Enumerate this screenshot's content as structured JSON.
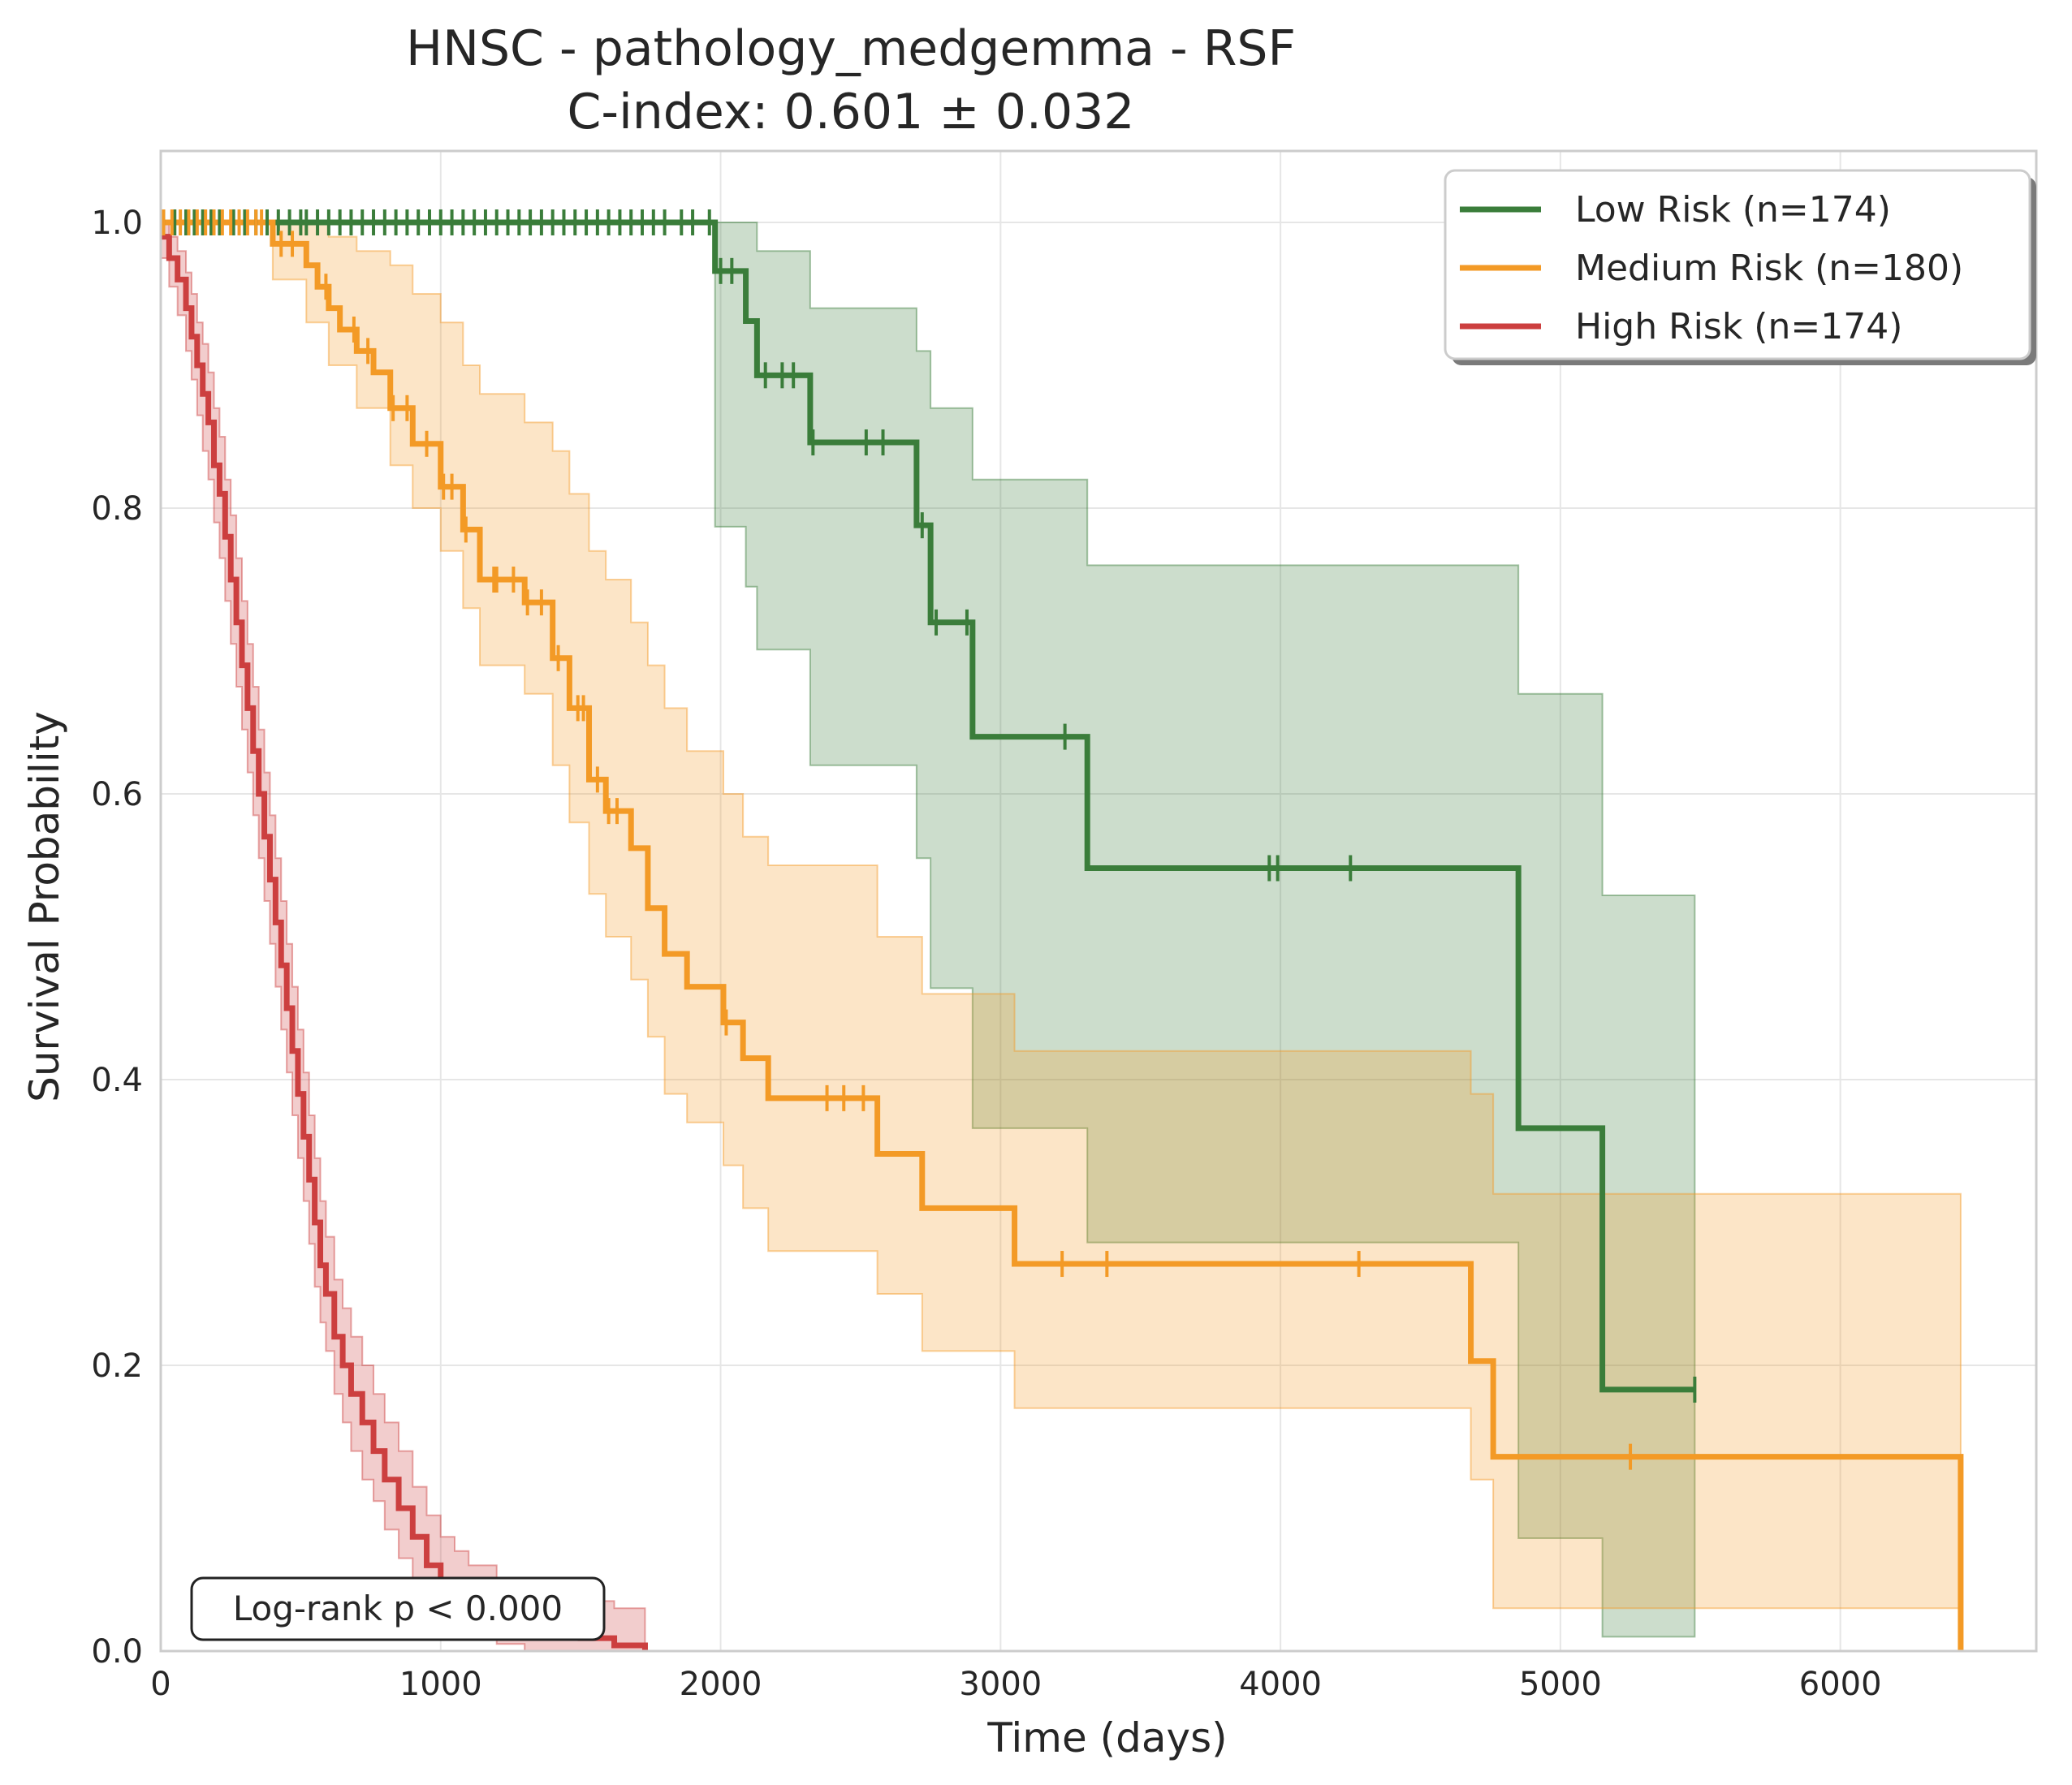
{
  "chart_data": {
    "type": "line",
    "title": "HNSC - pathology_medgemma - RSF",
    "subtitle": "C-index: 0.601 ± 0.032",
    "xlabel": "Time (days)",
    "ylabel": "Survival Probability",
    "xlim": [
      0,
      6700
    ],
    "ylim": [
      0,
      1.05
    ],
    "x_ticks": [
      0,
      1000,
      2000,
      3000,
      4000,
      5000,
      6000
    ],
    "y_ticks": [
      0.0,
      0.2,
      0.4,
      0.6,
      0.8,
      1.0
    ],
    "x_tick_labels": [
      "0",
      "1000",
      "2000",
      "3000",
      "4000",
      "5000",
      "6000"
    ],
    "y_tick_labels": [
      "0.0",
      "0.2",
      "0.4",
      "0.6",
      "0.8",
      "1.0"
    ],
    "grid": true,
    "legend_position": "top-right",
    "annotation": "Log-rank p < 0.000",
    "series": [
      {
        "name": "Low Risk (n=174)",
        "color": "#3a7d3a",
        "steps": [
          [
            0,
            1.0
          ],
          [
            1980,
            0.966
          ],
          [
            2090,
            0.931
          ],
          [
            2130,
            0.893
          ],
          [
            2320,
            0.846
          ],
          [
            2700,
            0.788
          ],
          [
            2750,
            0.72
          ],
          [
            2900,
            0.64
          ],
          [
            3310,
            0.548
          ],
          [
            4850,
            0.366
          ],
          [
            5150,
            0.183
          ],
          [
            5480,
            0.183
          ]
        ],
        "ci_steps": [
          [
            0,
            1.0,
            1.0
          ],
          [
            1980,
            1.0,
            0.787
          ],
          [
            2090,
            1.0,
            0.745
          ],
          [
            2130,
            0.98,
            0.701
          ],
          [
            2320,
            0.94,
            0.62
          ],
          [
            2700,
            0.91,
            0.555
          ],
          [
            2750,
            0.87,
            0.464
          ],
          [
            2900,
            0.82,
            0.366
          ],
          [
            3310,
            0.76,
            0.286
          ],
          [
            4850,
            0.67,
            0.079
          ],
          [
            5150,
            0.529,
            0.01
          ],
          [
            5480,
            0.529,
            0.01
          ]
        ],
        "censor_times": [
          10,
          50,
          90,
          120,
          150,
          180,
          210,
          260,
          300,
          340,
          380,
          420,
          460,
          500,
          520,
          560,
          600,
          640,
          680,
          720,
          760,
          800,
          840,
          880,
          920,
          960,
          1000,
          1040,
          1080,
          1120,
          1160,
          1200,
          1240,
          1280,
          1320,
          1360,
          1400,
          1440,
          1480,
          1520,
          1560,
          1600,
          1640,
          1680,
          1720,
          1760,
          1800,
          1860,
          1900,
          1960,
          2000,
          2040,
          2160,
          2220,
          2260,
          2330,
          2520,
          2580,
          2720,
          2770,
          2880,
          3230,
          3960,
          3990,
          4250,
          5480
        ]
      },
      {
        "name": "Medium Risk (n=180)",
        "color": "#f39a26",
        "steps": [
          [
            0,
            1.0
          ],
          [
            400,
            0.985
          ],
          [
            520,
            0.97
          ],
          [
            560,
            0.955
          ],
          [
            600,
            0.94
          ],
          [
            640,
            0.925
          ],
          [
            700,
            0.91
          ],
          [
            760,
            0.895
          ],
          [
            820,
            0.87
          ],
          [
            900,
            0.845
          ],
          [
            1000,
            0.815
          ],
          [
            1080,
            0.785
          ],
          [
            1140,
            0.75
          ],
          [
            1300,
            0.734
          ],
          [
            1400,
            0.695
          ],
          [
            1460,
            0.66
          ],
          [
            1530,
            0.61
          ],
          [
            1590,
            0.588
          ],
          [
            1680,
            0.562
          ],
          [
            1740,
            0.52
          ],
          [
            1800,
            0.488
          ],
          [
            1880,
            0.465
          ],
          [
            2010,
            0.44
          ],
          [
            2080,
            0.415
          ],
          [
            2170,
            0.387
          ],
          [
            2560,
            0.348
          ],
          [
            2720,
            0.31
          ],
          [
            3050,
            0.271
          ],
          [
            4680,
            0.203
          ],
          [
            4760,
            0.136
          ],
          [
            6430,
            0.136
          ],
          [
            6430,
            0.0
          ]
        ],
        "ci_steps": [
          [
            0,
            1.0,
            1.0
          ],
          [
            400,
            1.0,
            0.96
          ],
          [
            520,
            1.0,
            0.93
          ],
          [
            600,
            0.99,
            0.9
          ],
          [
            700,
            0.98,
            0.87
          ],
          [
            820,
            0.97,
            0.83
          ],
          [
            900,
            0.95,
            0.8
          ],
          [
            1000,
            0.93,
            0.77
          ],
          [
            1080,
            0.9,
            0.73
          ],
          [
            1140,
            0.88,
            0.69
          ],
          [
            1300,
            0.86,
            0.67
          ],
          [
            1400,
            0.84,
            0.62
          ],
          [
            1460,
            0.81,
            0.58
          ],
          [
            1530,
            0.77,
            0.53
          ],
          [
            1590,
            0.75,
            0.5
          ],
          [
            1680,
            0.72,
            0.47
          ],
          [
            1740,
            0.69,
            0.43
          ],
          [
            1800,
            0.66,
            0.39
          ],
          [
            1880,
            0.63,
            0.37
          ],
          [
            2010,
            0.6,
            0.34
          ],
          [
            2080,
            0.57,
            0.31
          ],
          [
            2170,
            0.55,
            0.28
          ],
          [
            2560,
            0.5,
            0.25
          ],
          [
            2720,
            0.46,
            0.21
          ],
          [
            3050,
            0.42,
            0.17
          ],
          [
            4680,
            0.39,
            0.12
          ],
          [
            4760,
            0.32,
            0.03
          ],
          [
            6430,
            0.32,
            0.03
          ]
        ],
        "censor_times": [
          10,
          40,
          70,
          100,
          130,
          160,
          190,
          220,
          250,
          280,
          310,
          340,
          360,
          430,
          470,
          590,
          690,
          740,
          830,
          880,
          950,
          1010,
          1040,
          1090,
          1190,
          1200,
          1260,
          1310,
          1360,
          1420,
          1490,
          1510,
          1560,
          1600,
          1630,
          2020,
          2380,
          2440,
          2510,
          3220,
          3380,
          4280,
          5250
        ]
      },
      {
        "name": "High Risk (n=174)",
        "color": "#cc3f3f",
        "steps": [
          [
            0,
            0.99
          ],
          [
            30,
            0.975
          ],
          [
            60,
            0.96
          ],
          [
            90,
            0.94
          ],
          [
            110,
            0.92
          ],
          [
            130,
            0.9
          ],
          [
            150,
            0.88
          ],
          [
            170,
            0.86
          ],
          [
            190,
            0.83
          ],
          [
            210,
            0.81
          ],
          [
            230,
            0.78
          ],
          [
            250,
            0.75
          ],
          [
            270,
            0.72
          ],
          [
            290,
            0.69
          ],
          [
            310,
            0.66
          ],
          [
            330,
            0.63
          ],
          [
            350,
            0.6
          ],
          [
            370,
            0.57
          ],
          [
            390,
            0.54
          ],
          [
            410,
            0.51
          ],
          [
            430,
            0.48
          ],
          [
            450,
            0.45
          ],
          [
            470,
            0.42
          ],
          [
            490,
            0.39
          ],
          [
            510,
            0.36
          ],
          [
            530,
            0.33
          ],
          [
            550,
            0.3
          ],
          [
            570,
            0.27
          ],
          [
            590,
            0.25
          ],
          [
            620,
            0.22
          ],
          [
            650,
            0.2
          ],
          [
            680,
            0.18
          ],
          [
            720,
            0.16
          ],
          [
            760,
            0.14
          ],
          [
            800,
            0.12
          ],
          [
            850,
            0.1
          ],
          [
            900,
            0.08
          ],
          [
            950,
            0.06
          ],
          [
            1000,
            0.045
          ],
          [
            1050,
            0.035
          ],
          [
            1100,
            0.028
          ],
          [
            1200,
            0.022
          ],
          [
            1300,
            0.016
          ],
          [
            1400,
            0.012
          ],
          [
            1500,
            0.009
          ],
          [
            1620,
            0.004
          ],
          [
            1730,
            0.0
          ]
        ],
        "ci_steps": [
          [
            0,
            1.0,
            0.975
          ],
          [
            30,
            0.99,
            0.955
          ],
          [
            60,
            0.98,
            0.935
          ],
          [
            90,
            0.965,
            0.91
          ],
          [
            110,
            0.95,
            0.89
          ],
          [
            130,
            0.93,
            0.865
          ],
          [
            150,
            0.915,
            0.84
          ],
          [
            170,
            0.895,
            0.82
          ],
          [
            190,
            0.87,
            0.79
          ],
          [
            210,
            0.85,
            0.765
          ],
          [
            230,
            0.82,
            0.735
          ],
          [
            250,
            0.795,
            0.705
          ],
          [
            270,
            0.765,
            0.675
          ],
          [
            290,
            0.735,
            0.645
          ],
          [
            310,
            0.705,
            0.615
          ],
          [
            330,
            0.675,
            0.585
          ],
          [
            350,
            0.645,
            0.555
          ],
          [
            370,
            0.615,
            0.525
          ],
          [
            390,
            0.585,
            0.495
          ],
          [
            410,
            0.555,
            0.465
          ],
          [
            430,
            0.525,
            0.435
          ],
          [
            450,
            0.495,
            0.405
          ],
          [
            470,
            0.465,
            0.375
          ],
          [
            490,
            0.435,
            0.345
          ],
          [
            510,
            0.405,
            0.315
          ],
          [
            530,
            0.375,
            0.285
          ],
          [
            550,
            0.345,
            0.255
          ],
          [
            570,
            0.315,
            0.23
          ],
          [
            590,
            0.29,
            0.21
          ],
          [
            620,
            0.26,
            0.18
          ],
          [
            650,
            0.24,
            0.16
          ],
          [
            680,
            0.22,
            0.14
          ],
          [
            720,
            0.2,
            0.12
          ],
          [
            760,
            0.18,
            0.105
          ],
          [
            800,
            0.16,
            0.085
          ],
          [
            850,
            0.14,
            0.065
          ],
          [
            900,
            0.115,
            0.05
          ],
          [
            950,
            0.095,
            0.035
          ],
          [
            1000,
            0.08,
            0.022
          ],
          [
            1050,
            0.07,
            0.015
          ],
          [
            1100,
            0.06,
            0.01
          ],
          [
            1200,
            0.05,
            0.005
          ],
          [
            1300,
            0.045,
            0.0
          ],
          [
            1400,
            0.04,
            0.0
          ],
          [
            1500,
            0.035,
            0.0
          ],
          [
            1620,
            0.03,
            0.0
          ],
          [
            1730,
            0.0,
            0.0
          ]
        ],
        "censor_times": []
      }
    ]
  }
}
